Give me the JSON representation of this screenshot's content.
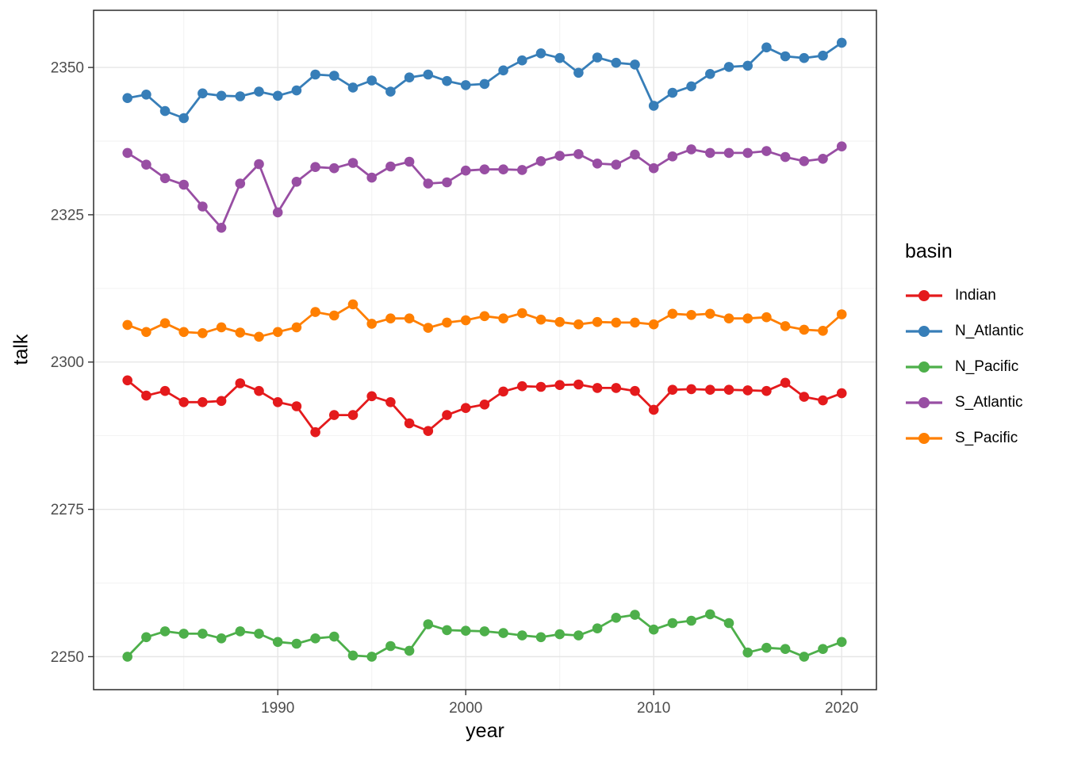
{
  "figure": {
    "x_axis_title": "year",
    "y_axis_title": "talk"
  },
  "colors": {
    "background": "#FFFFFF",
    "panel_border": "#2B2B2B",
    "grid_major": "#E6E6E6",
    "grid_minor": "#F2F2F2",
    "axis_text": "#4D4D4D",
    "axis_title": "#000000",
    "tick_mark": "#333333"
  },
  "chart_data": {
    "type": "line",
    "title": "",
    "xlabel": "year",
    "ylabel": "talk",
    "legend_title": "basin",
    "legend_position": "right",
    "grid": true,
    "x_domain": [
      1980.2,
      2021.85
    ],
    "y_domain": [
      2244.4,
      2359.7
    ],
    "x_ticks": {
      "major": [
        1990,
        2000,
        2010,
        2020
      ],
      "minor": [
        1985,
        1995,
        2005,
        2015
      ]
    },
    "y_ticks": {
      "major": [
        2250,
        2275,
        2300,
        2325,
        2350
      ],
      "minor": [
        2262.5,
        2287.5,
        2312.5,
        2337.5
      ]
    },
    "x": [
      1982,
      1983,
      1984,
      1985,
      1986,
      1987,
      1988,
      1989,
      1990,
      1991,
      1992,
      1993,
      1994,
      1995,
      1996,
      1997,
      1998,
      1999,
      2000,
      2001,
      2002,
      2003,
      2004,
      2005,
      2006,
      2007,
      2008,
      2009,
      2010,
      2011,
      2012,
      2013,
      2014,
      2015,
      2016,
      2017,
      2018,
      2019,
      2020
    ],
    "series": [
      {
        "name": "Indian",
        "color": "#E41A1C",
        "values": [
          2296.9,
          2294.3,
          2295.1,
          2293.2,
          2293.2,
          2293.4,
          2296.4,
          2295.1,
          2293.2,
          2292.5,
          2288.1,
          2291.0,
          2291.0,
          2294.2,
          2293.2,
          2289.6,
          2288.3,
          2291.0,
          2292.2,
          2292.8,
          2295.0,
          2295.9,
          2295.8,
          2296.1,
          2296.2,
          2295.6,
          2295.6,
          2295.1,
          2291.9,
          2295.3,
          2295.4,
          2295.3,
          2295.3,
          2295.2,
          2295.1,
          2296.5,
          2294.1,
          2293.5,
          2294.7
        ]
      },
      {
        "name": "N_Atlantic",
        "color": "#377EB8",
        "values": [
          2344.8,
          2345.4,
          2342.6,
          2341.4,
          2345.6,
          2345.2,
          2345.1,
          2345.9,
          2345.2,
          2346.1,
          2348.8,
          2348.6,
          2346.6,
          2347.8,
          2345.9,
          2348.3,
          2348.8,
          2347.7,
          2347.0,
          2347.2,
          2349.5,
          2351.2,
          2352.4,
          2351.6,
          2349.1,
          2351.7,
          2350.8,
          2350.5,
          2343.5,
          2345.7,
          2346.8,
          2348.9,
          2350.1,
          2350.3,
          2353.4,
          2351.9,
          2351.6,
          2352.0,
          2354.2
        ]
      },
      {
        "name": "N_Pacific",
        "color": "#4DAF4A",
        "values": [
          2250.0,
          2253.3,
          2254.3,
          2253.9,
          2253.9,
          2253.1,
          2254.3,
          2253.9,
          2252.5,
          2252.2,
          2253.1,
          2253.4,
          2250.2,
          2250.0,
          2251.8,
          2251.0,
          2255.5,
          2254.5,
          2254.4,
          2254.3,
          2254.0,
          2253.6,
          2253.3,
          2253.8,
          2253.6,
          2254.8,
          2256.6,
          2257.1,
          2254.6,
          2255.7,
          2256.1,
          2257.2,
          2255.7,
          2250.7,
          2251.5,
          2251.3,
          2250.0,
          2251.3,
          2252.5
        ]
      },
      {
        "name": "S_Atlantic",
        "color": "#984EA3",
        "values": [
          2335.5,
          2333.5,
          2331.2,
          2330.1,
          2326.4,
          2322.8,
          2330.3,
          2333.6,
          2325.4,
          2330.6,
          2333.1,
          2332.9,
          2333.8,
          2331.3,
          2333.2,
          2334.0,
          2330.3,
          2330.5,
          2332.5,
          2332.7,
          2332.7,
          2332.6,
          2334.1,
          2335.0,
          2335.3,
          2333.7,
          2333.5,
          2335.2,
          2332.9,
          2334.9,
          2336.1,
          2335.5,
          2335.5,
          2335.5,
          2335.8,
          2334.8,
          2334.1,
          2334.5,
          2336.6
        ]
      },
      {
        "name": "S_Pacific",
        "color": "#FF7F00",
        "values": [
          2306.3,
          2305.1,
          2306.6,
          2305.1,
          2304.9,
          2305.9,
          2305.0,
          2304.3,
          2305.1,
          2305.9,
          2308.5,
          2307.9,
          2309.8,
          2306.5,
          2307.4,
          2307.4,
          2305.8,
          2306.7,
          2307.1,
          2307.8,
          2307.4,
          2308.3,
          2307.2,
          2306.8,
          2306.4,
          2306.8,
          2306.7,
          2306.7,
          2306.4,
          2308.2,
          2308.0,
          2308.2,
          2307.4,
          2307.4,
          2307.6,
          2306.1,
          2305.5,
          2305.3,
          2308.1
        ]
      }
    ]
  }
}
